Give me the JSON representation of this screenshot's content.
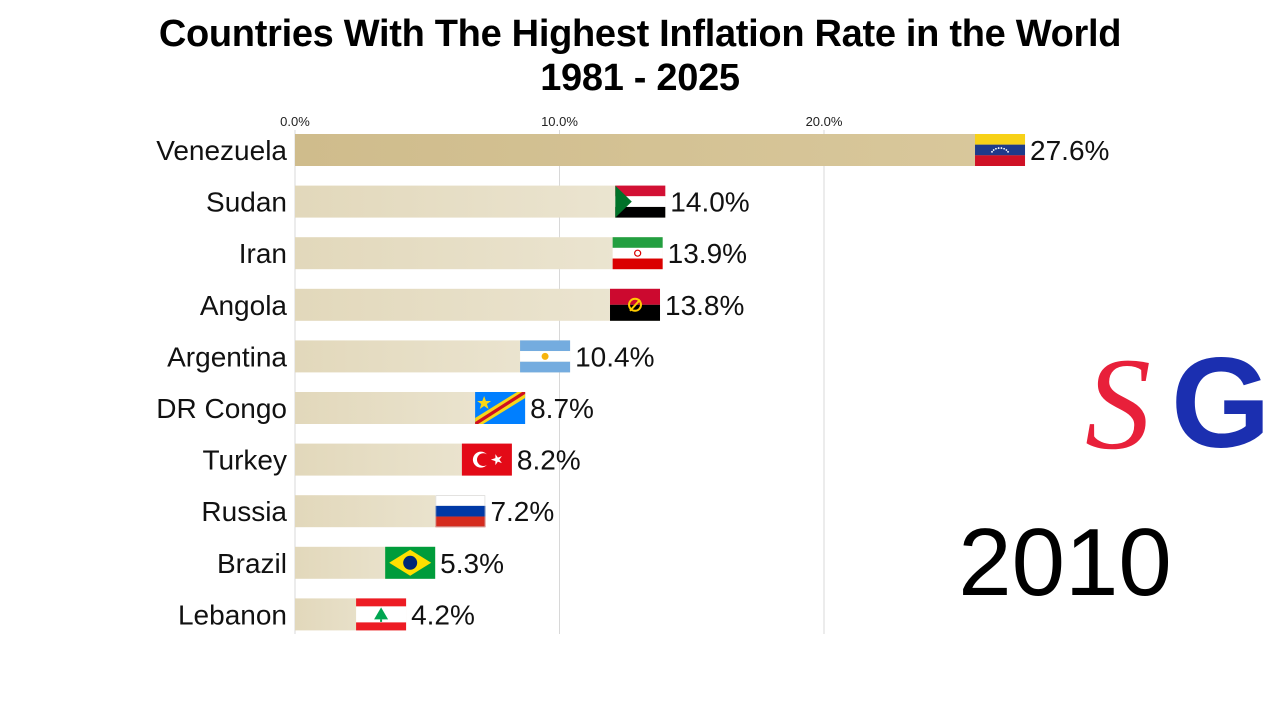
{
  "title_line1": "Countries With The Highest Inflation Rate in the World",
  "title_line2": "1981 - 2025",
  "year": "2010",
  "logo": {
    "left_letter": "S",
    "right_letter": "G",
    "left_color": "#e8203a",
    "right_color": "#1b2fb0"
  },
  "colors": {
    "bar_top": "#d6c496",
    "bar": "#e8e0c8",
    "grid": "#d8d8d8"
  },
  "chart_data": {
    "type": "bar",
    "orientation": "horizontal",
    "categories": [
      "Venezuela",
      "Sudan",
      "Iran",
      "Angola",
      "Argentina",
      "DR Congo",
      "Turkey",
      "Russia",
      "Brazil",
      "Lebanon"
    ],
    "values": [
      27.6,
      14.0,
      13.9,
      13.8,
      10.4,
      8.7,
      8.2,
      7.2,
      5.3,
      4.2
    ],
    "value_labels": [
      "27.6%",
      "14.0%",
      "13.9%",
      "13.8%",
      "10.4%",
      "8.7%",
      "8.2%",
      "7.2%",
      "5.3%",
      "4.2%"
    ],
    "flags": [
      "venezuela-flag",
      "sudan-flag",
      "iran-flag",
      "angola-flag",
      "argentina-flag",
      "dr-congo-flag",
      "turkey-flag",
      "russia-flag",
      "brazil-flag",
      "lebanon-flag"
    ],
    "ticks": [
      0,
      10,
      20
    ],
    "tick_labels": [
      "0.0%",
      "10.0%",
      "20.0%"
    ],
    "xlim": [
      0,
      30
    ],
    "grid": true,
    "axis_position": "top"
  }
}
